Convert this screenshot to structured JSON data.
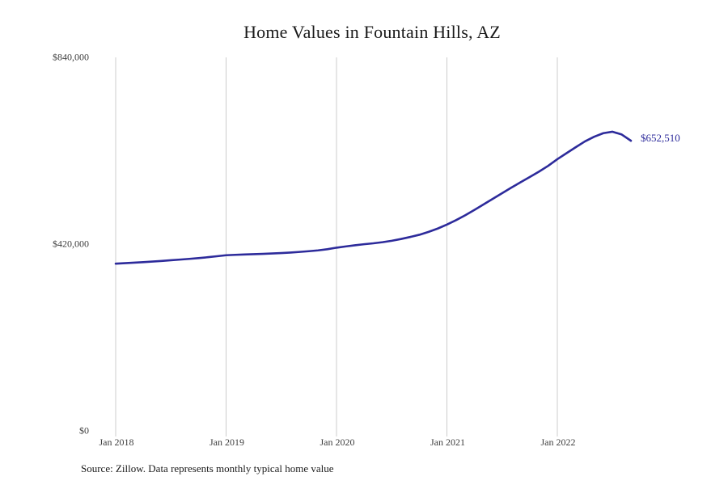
{
  "page": {
    "title": "Home Values in Fountain Hills, AZ",
    "source_note": "Source: Zillow. Data represents monthly typical home value"
  },
  "colors": {
    "line": "#2d2b9b",
    "grid": "#cccccc",
    "tick_text": "#3d3d3d",
    "title_text": "#1a1a1a",
    "end_label_text": "#2d2b9b"
  },
  "chart_data": {
    "type": "line",
    "title": "Home Values in Fountain Hills, AZ",
    "xlabel": "",
    "ylabel": "",
    "ylim": [
      0,
      840000
    ],
    "grid": "vertical-only",
    "legend": "none",
    "end_label": "$652,510",
    "y_ticks": [
      {
        "value": 840000,
        "label": "$840,000"
      },
      {
        "value": 420000,
        "label": "$420,000"
      },
      {
        "value": 0,
        "label": "$0"
      }
    ],
    "x_ticks": [
      {
        "month_index": 0,
        "label": "Jan 2018"
      },
      {
        "month_index": 12,
        "label": "Jan 2019"
      },
      {
        "month_index": 24,
        "label": "Jan 2020"
      },
      {
        "month_index": 36,
        "label": "Jan 2021"
      },
      {
        "month_index": 48,
        "label": "Jan 2022"
      }
    ],
    "series": [
      {
        "name": "Monthly typical home value",
        "x": [
          "2018-01",
          "2018-02",
          "2018-03",
          "2018-04",
          "2018-05",
          "2018-06",
          "2018-07",
          "2018-08",
          "2018-09",
          "2018-10",
          "2018-11",
          "2018-12",
          "2019-01",
          "2019-02",
          "2019-03",
          "2019-04",
          "2019-05",
          "2019-06",
          "2019-07",
          "2019-08",
          "2019-09",
          "2019-10",
          "2019-11",
          "2019-12",
          "2020-01",
          "2020-02",
          "2020-03",
          "2020-04",
          "2020-05",
          "2020-06",
          "2020-07",
          "2020-08",
          "2020-09",
          "2020-10",
          "2020-11",
          "2020-12",
          "2021-01",
          "2021-02",
          "2021-03",
          "2021-04",
          "2021-05",
          "2021-06",
          "2021-07",
          "2021-08",
          "2021-09",
          "2021-10",
          "2021-11",
          "2021-12",
          "2022-01",
          "2022-02",
          "2022-03",
          "2022-04",
          "2022-05",
          "2022-06",
          "2022-07",
          "2022-08",
          "2022-09"
        ],
        "values": [
          376000,
          377100,
          378300,
          379500,
          380800,
          382200,
          383700,
          385200,
          386800,
          388500,
          390500,
          392700,
          395000,
          395900,
          396700,
          397400,
          398100,
          398900,
          399900,
          401100,
          402500,
          404100,
          405900,
          408500,
          412000,
          414800,
          417400,
          419800,
          421800,
          424300,
          427500,
          431500,
          436000,
          441000,
          447500,
          455000,
          464000,
          474000,
          485000,
          497000,
          509500,
          522000,
          534500,
          547000,
          559000,
          571000,
          583000,
          596000,
          611000,
          624500,
          638000,
          651000,
          661500,
          669500,
          672800,
          666500,
          652510
        ]
      }
    ]
  }
}
